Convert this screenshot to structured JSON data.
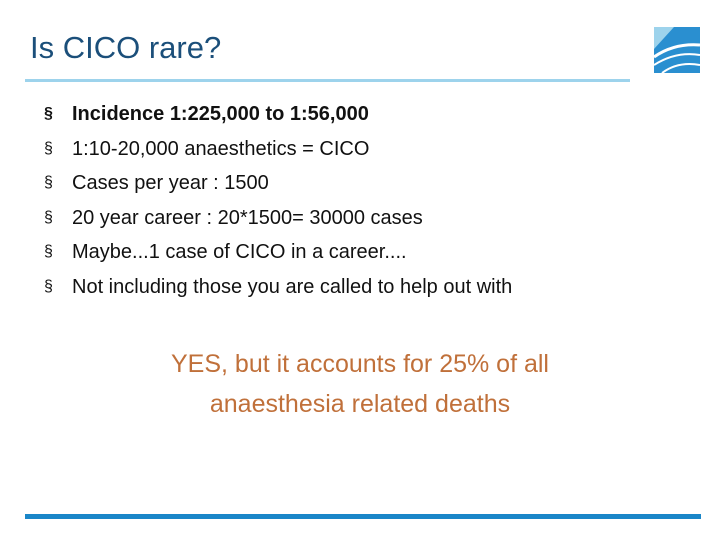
{
  "header": {
    "title": "Is CICO rare?"
  },
  "bullets": [
    "Incidence 1:225,000 to 1:56,000",
    "1:10-20,000 anaesthetics = CICO",
    "Cases per year : 1500",
    "20 year career : 20*1500= 30000 cases",
    "Maybe...1 case of CICO in a career....",
    "Not including those you are called to help out with"
  ],
  "callout": [
    "YES, but it accounts for 25% of all",
    "anaesthesia related deaths"
  ]
}
